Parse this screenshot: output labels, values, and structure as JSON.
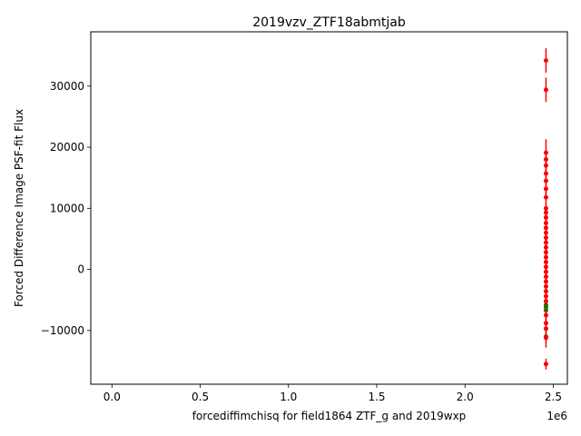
{
  "chart_data": {
    "type": "scatter",
    "title": "2019vzv_ZTF18abmtjab",
    "xlabel": "forcediffimchisq for field1864 ZTF_g and 2019wxp",
    "ylabel": "Forced Difference Image PSF-fit Flux",
    "x_offset_label": "1e6",
    "xlim": [
      -120000,
      2580000
    ],
    "ylim": [
      -18800,
      38900
    ],
    "x_ticks": [
      0,
      500000,
      1000000,
      1500000,
      2000000,
      2500000
    ],
    "x_tick_labels": [
      "0.0",
      "0.5",
      "1.0",
      "1.5",
      "2.0",
      "2.5"
    ],
    "y_ticks": [
      -10000,
      0,
      10000,
      20000,
      30000
    ],
    "y_tick_labels": [
      "−10000",
      "0",
      "10000",
      "20000",
      "30000"
    ],
    "grid": false,
    "colors": {
      "red": "#ff0000",
      "green": "#008000"
    },
    "series": [
      {
        "color": "green",
        "points": [
          {
            "x": 2458800,
            "y": -6200,
            "err": 600
          },
          {
            "x": 2458810,
            "y": -6700,
            "err": 600
          },
          {
            "x": 2458820,
            "y": -11000,
            "err": 700
          },
          {
            "x": 2458830,
            "y": -5800,
            "err": 500
          }
        ]
      },
      {
        "color": "red",
        "points": [
          {
            "x": 2458800,
            "y": 34200,
            "err": 2000
          },
          {
            "x": 2458801,
            "y": 29400,
            "err": 2000
          },
          {
            "x": 2458802,
            "y": 19100,
            "err": 2200
          },
          {
            "x": 2458803,
            "y": 18000,
            "err": 1500
          },
          {
            "x": 2458804,
            "y": 17000,
            "err": 1200
          },
          {
            "x": 2458805,
            "y": 15700,
            "err": 1200
          },
          {
            "x": 2458806,
            "y": 14500,
            "err": 1200
          },
          {
            "x": 2458807,
            "y": 13200,
            "err": 1000
          },
          {
            "x": 2458808,
            "y": 11800,
            "err": 1000
          },
          {
            "x": 2458809,
            "y": 10000,
            "err": 900
          },
          {
            "x": 2458810,
            "y": 9300,
            "err": 900
          },
          {
            "x": 2458811,
            "y": 8500,
            "err": 800
          },
          {
            "x": 2458812,
            "y": 7600,
            "err": 800
          },
          {
            "x": 2458813,
            "y": 6800,
            "err": 800
          },
          {
            "x": 2458814,
            "y": 6000,
            "err": 800
          },
          {
            "x": 2458815,
            "y": 5200,
            "err": 800
          },
          {
            "x": 2458816,
            "y": 4400,
            "err": 800
          },
          {
            "x": 2458817,
            "y": 3600,
            "err": 800
          },
          {
            "x": 2458818,
            "y": 2800,
            "err": 800
          },
          {
            "x": 2458819,
            "y": 2000,
            "err": 800
          },
          {
            "x": 2458820,
            "y": 1200,
            "err": 800
          },
          {
            "x": 2458821,
            "y": 400,
            "err": 800
          },
          {
            "x": 2458822,
            "y": -400,
            "err": 800
          },
          {
            "x": 2458823,
            "y": -1200,
            "err": 800
          },
          {
            "x": 2458824,
            "y": -2000,
            "err": 800
          },
          {
            "x": 2458825,
            "y": -2800,
            "err": 800
          },
          {
            "x": 2458826,
            "y": -3600,
            "err": 800
          },
          {
            "x": 2458827,
            "y": -4400,
            "err": 800
          },
          {
            "x": 2458828,
            "y": -5200,
            "err": 800
          },
          {
            "x": 2458829,
            "y": -7500,
            "err": 1000
          },
          {
            "x": 2458830,
            "y": -8800,
            "err": 1000
          },
          {
            "x": 2458831,
            "y": -9700,
            "err": 1000
          },
          {
            "x": 2458832,
            "y": -11200,
            "err": 1600
          },
          {
            "x": 2458833,
            "y": -15500,
            "err": 900
          }
        ]
      }
    ]
  }
}
